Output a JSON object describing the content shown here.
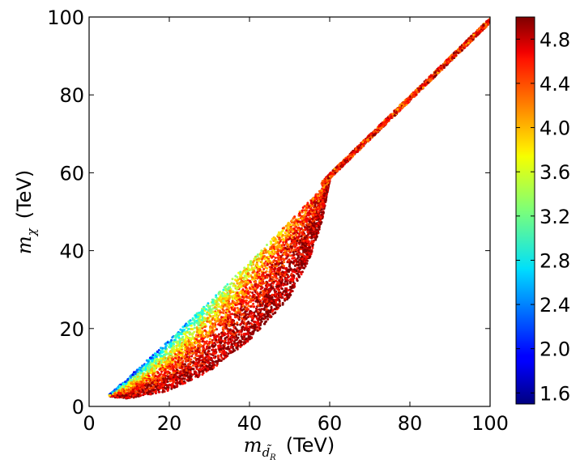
{
  "chart_data": {
    "type": "scatter",
    "title": "",
    "xlabel": {
      "symbol": "m",
      "subscript": "d̃",
      "subsubscript": "R",
      "unit": "(TeV)"
    },
    "ylabel": {
      "symbol": "m",
      "subscript": "χ",
      "unit": "(TeV)"
    },
    "xlim": [
      0,
      100
    ],
    "ylim": [
      0,
      100
    ],
    "xticks": [
      "0",
      "20",
      "40",
      "60",
      "80",
      "100"
    ],
    "yticks": [
      "0",
      "20",
      "40",
      "60",
      "80",
      "100"
    ],
    "grid": false,
    "legend": "none",
    "colorbar": {
      "range": [
        1.5,
        5.0
      ],
      "ticks": [
        "1.6",
        "2.0",
        "2.4",
        "2.8",
        "3.2",
        "3.6",
        "4.0",
        "4.4",
        "4.8"
      ],
      "colormap": "jet",
      "position": "right"
    },
    "region": {
      "description_points_upper_edge": [
        [
          5,
          3
        ],
        [
          20,
          17
        ],
        [
          40,
          37
        ],
        [
          60,
          58
        ],
        [
          80,
          79
        ],
        [
          100,
          100
        ]
      ],
      "lower_edge": [
        [
          5,
          2.5
        ],
        [
          10,
          2
        ],
        [
          20,
          4
        ],
        [
          30,
          9
        ],
        [
          40,
          17
        ],
        [
          50,
          28
        ],
        [
          55,
          38
        ],
        [
          58,
          47
        ],
        [
          60,
          58
        ]
      ],
      "color_trend": "low values (blue-green) near upper diagonal at small masses, high values (red) toward lower boundary and large masses"
    },
    "series": [
      {
        "x_range": [
          5,
          100
        ],
        "y_range": [
          2,
          100
        ],
        "color_value_range": [
          1.6,
          5.0
        ]
      }
    ]
  }
}
